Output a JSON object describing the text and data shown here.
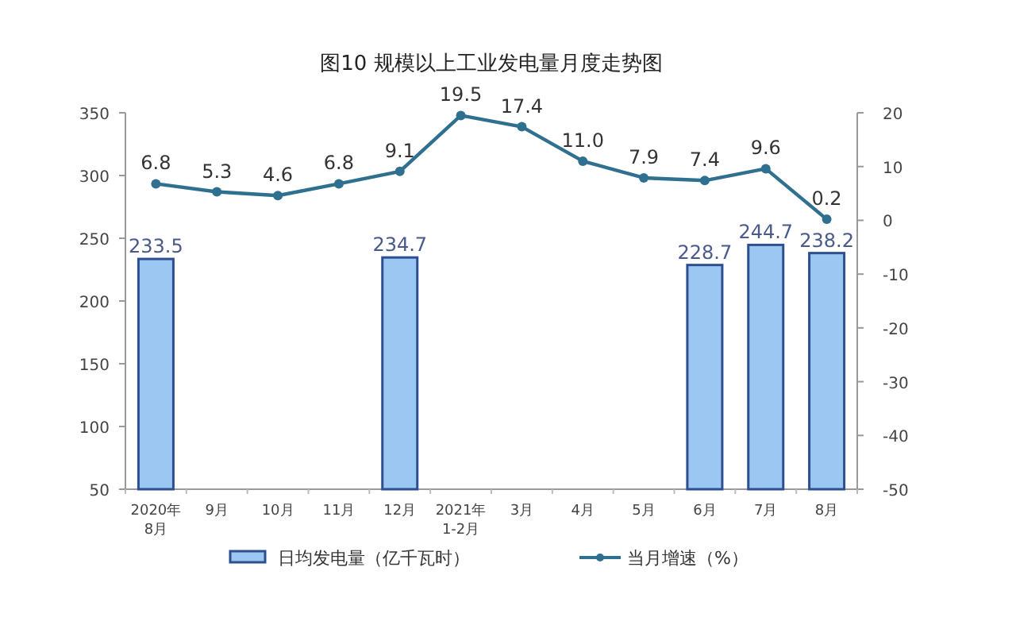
{
  "chart_data": {
    "type": "bar",
    "title": "图10  规模以上工业发电量月度走势图",
    "categories": [
      "2020年 8月",
      "9月",
      "10月",
      "11月",
      "12月",
      "2021年 1-2月",
      "3月",
      "4月",
      "5月",
      "6月",
      "7月",
      "8月"
    ],
    "series": [
      {
        "name": "日均发电量（亿千瓦时）",
        "color": "#9cc7f2",
        "values": [
          233.5,
          null,
          null,
          null,
          234.7,
          null,
          null,
          null,
          null,
          228.7,
          244.7,
          238.2
        ]
      },
      {
        "name": "当月增速（%）",
        "type": "line",
        "axis": "y2",
        "color": "#2f6f8f",
        "marker": "circle",
        "values": [
          6.8,
          5.3,
          4.6,
          6.8,
          9.1,
          19.5,
          17.4,
          11.0,
          7.9,
          7.4,
          9.6,
          0.2
        ],
        "value_labels": [
          "6.8",
          "5.3",
          "4.6",
          "6.8",
          "9.1",
          "19.5",
          "17.4",
          "11.0",
          "7.9",
          "7.4",
          "9.6",
          "0.2"
        ]
      }
    ],
    "ylim": [
      50,
      350
    ],
    "yticks": [
      50,
      100,
      150,
      200,
      250,
      300,
      350
    ],
    "y2lim": [
      -50,
      20
    ],
    "y2ticks": [
      -50,
      -40,
      -30,
      -20,
      -10,
      0,
      10,
      20
    ],
    "data_labels": true,
    "grid": false,
    "legend": "bottom"
  }
}
